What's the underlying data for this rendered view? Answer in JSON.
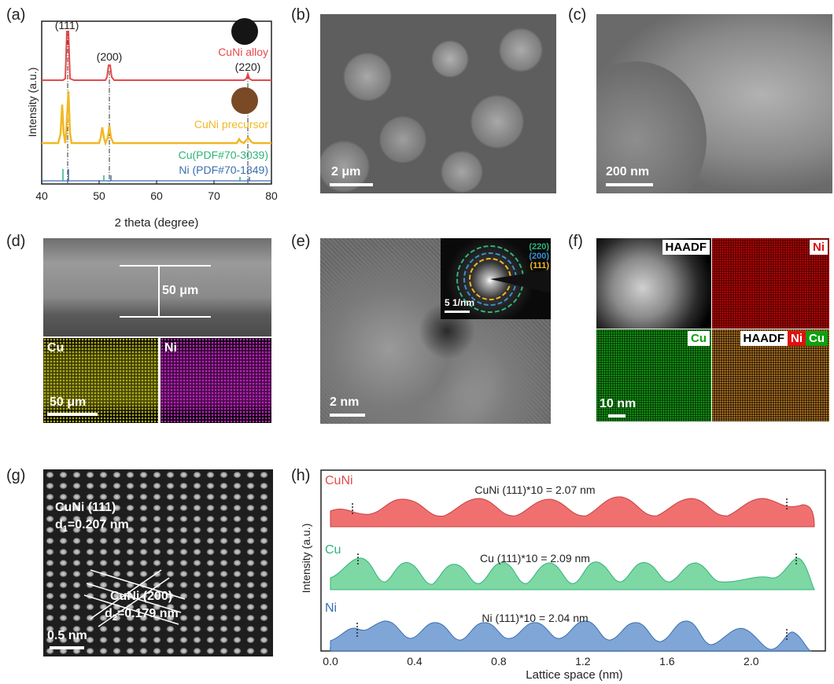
{
  "labels": {
    "a": "(a)",
    "b": "(b)",
    "c": "(c)",
    "d": "(d)",
    "e": "(e)",
    "f": "(f)",
    "g": "(g)",
    "h": "(h)"
  },
  "panel_a": {
    "peaks": {
      "p111": "(111)",
      "p200": "(200)",
      "p220": "(220)"
    },
    "series": {
      "alloy": "CuNi alloy",
      "precursor": "CuNi precursor",
      "cu": "Cu(PDF#70-3039)",
      "ni": "Ni (PDF#70-1849)"
    },
    "colors": {
      "alloy": "#e8484a",
      "precursor": "#f2b824",
      "cu": "#2fb37a",
      "ni": "#3a6fb0"
    }
  },
  "panel_b": {
    "scale": "2 μm"
  },
  "panel_c": {
    "scale": "200 nm"
  },
  "panel_d": {
    "thickness": "50 μm",
    "cu": "Cu",
    "ni": "Ni",
    "scale": "50 μm"
  },
  "panel_e": {
    "scale": "2 nm",
    "inset_scale": "5 1/nm",
    "rings": [
      "(220)",
      "(200)",
      "(111)"
    ]
  },
  "panel_f": {
    "haadf": "HAADF",
    "ni": "Ni",
    "cu": "Cu",
    "merge_haadf": "HAADF",
    "merge_ni": "Ni",
    "merge_cu": "Cu",
    "scale": "10 nm"
  },
  "panel_g": {
    "plane1": "CuNi (111)",
    "d1_prefix": "d",
    "d1_sub": "1",
    "d1_val": "=0.207 nm",
    "plane2": "CuNi (200)",
    "d2_prefix": "d",
    "d2_sub": "2",
    "d2_val": "=0.179 nm",
    "scale": "0.5 nm"
  },
  "panel_h": {
    "cuni_label": "CuNi",
    "cu_label": "Cu",
    "ni_label": "Ni",
    "cuni_eq": "CuNi (111)*10 = 2.07 nm",
    "cu_eq": "Cu (111)*10 = 2.09 nm",
    "ni_eq": "Ni (111)*10 = 2.04 nm",
    "colors": {
      "cuni": "#e8484a",
      "cu": "#2fb37a",
      "ni": "#3a6fb0"
    }
  },
  "chart_data": [
    {
      "type": "line",
      "title": "",
      "xlabel": "2 theta (degree)",
      "ylabel": "Intensity (a.u.)",
      "xlim": [
        40,
        80
      ],
      "xticks": [
        "40",
        "50",
        "60",
        "70",
        "80"
      ],
      "series": [
        {
          "name": "CuNi alloy",
          "peaks_2theta": [
            44.2,
            51.5,
            75.7
          ]
        },
        {
          "name": "CuNi precursor",
          "peaks_2theta": [
            43.3,
            44.5,
            50.4,
            51.8,
            74.1,
            76.4
          ]
        },
        {
          "name": "Cu(PDF#70-3039)",
          "peaks_2theta": [
            43.3,
            50.4,
            74.1
          ]
        },
        {
          "name": "Ni (PDF#70-1849)",
          "peaks_2theta": [
            44.5,
            51.8,
            76.4
          ]
        }
      ]
    },
    {
      "type": "area",
      "title": "",
      "xlabel": "Lattice space (nm)",
      "ylabel": "Intensity (a.u.)",
      "xlim": [
        0.0,
        2.3
      ],
      "xticks": [
        "0.0",
        "0.4",
        "0.8",
        "1.2",
        "1.6",
        "2.0"
      ],
      "series": [
        {
          "name": "CuNi",
          "span_nm": [
            0.11,
            2.18
          ]
        },
        {
          "name": "Cu",
          "span_nm": [
            0.13,
            2.22
          ]
        },
        {
          "name": "Ni",
          "span_nm": [
            0.13,
            2.17
          ]
        }
      ]
    }
  ]
}
